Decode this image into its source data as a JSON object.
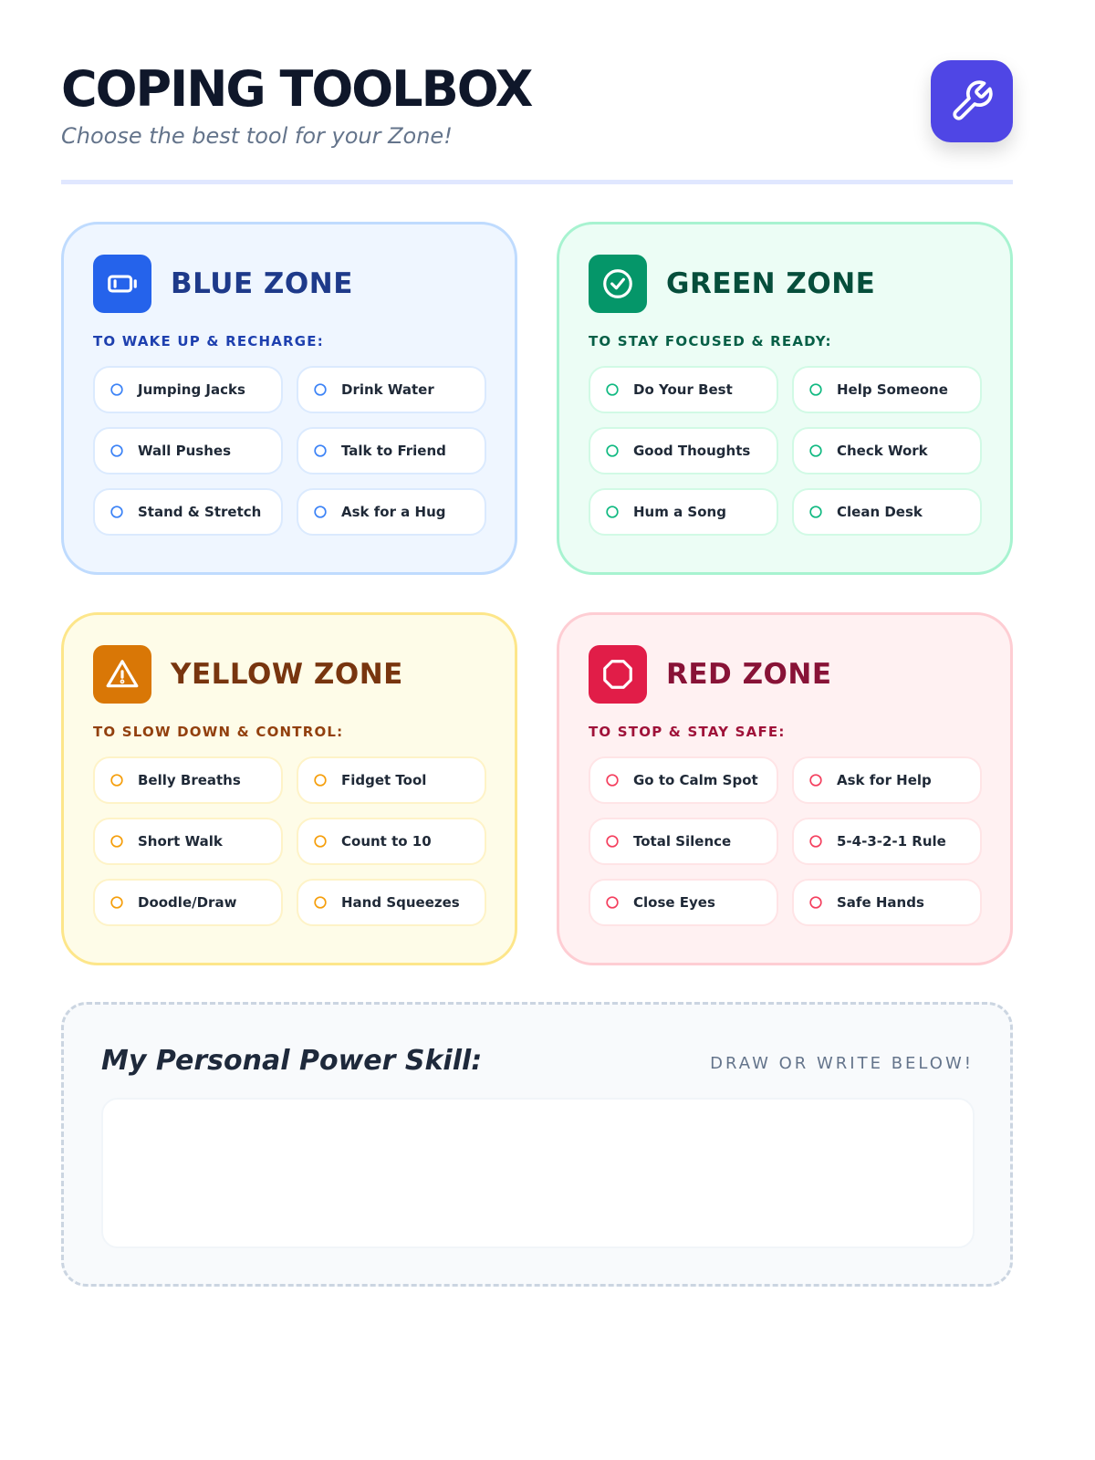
{
  "header": {
    "title": "COPING TOOLBOX",
    "subtitle": "Choose the best tool for your Zone!",
    "icon": "wrench-icon",
    "accent": "#4f46e5"
  },
  "zones": [
    {
      "title": "BLUE ZONE",
      "subtitle": "TO WAKE UP & RECHARGE:",
      "icon": "battery-icon",
      "color": "#2563eb",
      "tools": [
        "Jumping Jacks",
        "Drink Water",
        "Wall Pushes",
        "Talk to Friend",
        "Stand & Stretch",
        "Ask for a Hug"
      ]
    },
    {
      "title": "GREEN ZONE",
      "subtitle": "TO STAY FOCUSED & READY:",
      "icon": "check-circle-icon",
      "color": "#059669",
      "tools": [
        "Do Your Best",
        "Help Someone",
        "Good Thoughts",
        "Check Work",
        "Hum a Song",
        "Clean Desk"
      ]
    },
    {
      "title": "YELLOW ZONE",
      "subtitle": "TO SLOW DOWN & CONTROL:",
      "icon": "warning-icon",
      "color": "#d97706",
      "tools": [
        "Belly Breaths",
        "Fidget Tool",
        "Short Walk",
        "Count to 10",
        "Doodle/Draw",
        "Hand Squeezes"
      ]
    },
    {
      "title": "RED ZONE",
      "subtitle": "TO STOP & STAY SAFE:",
      "icon": "stop-octagon-icon",
      "color": "#e11d48",
      "tools": [
        "Go to Calm Spot",
        "Ask for Help",
        "Total Silence",
        "5-4-3-2-1 Rule",
        "Close Eyes",
        "Safe Hands"
      ]
    }
  ],
  "power": {
    "heading": "My Personal Power Skill:",
    "hint": "DRAW OR WRITE BELOW!"
  }
}
